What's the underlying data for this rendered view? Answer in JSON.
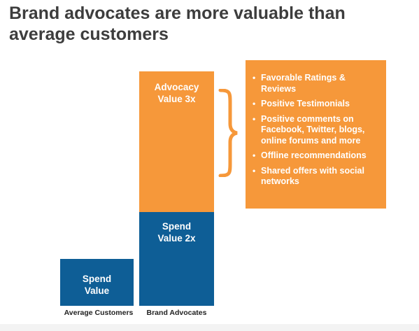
{
  "title": "Brand advocates are more valuable than average customers",
  "chart_data": {
    "type": "bar",
    "stacked": true,
    "categories": [
      "Average Customers",
      "Brand Advocates"
    ],
    "unit_note": "relative value",
    "series": [
      {
        "label": "Spend Value",
        "values": [
          1,
          2
        ],
        "color": "#0e5e96"
      },
      {
        "label": "Advocacy Value 3x",
        "values": [
          0,
          3
        ],
        "color": "#f6983a"
      }
    ],
    "segment_labels": {
      "average_spend": [
        "Spend",
        "Value"
      ],
      "advocate_spend": [
        "Spend",
        "Value 2x"
      ],
      "advocate_advocacy": [
        "Advocacy",
        "Value 3x"
      ]
    }
  },
  "callout": {
    "items": [
      "Favorable Ratings & Reviews",
      "Positive Testimonials",
      "Positive comments on Facebook, Twitter, blogs, online forums and more",
      "Offline recommendations",
      "Shared offers with social networks"
    ]
  },
  "colors": {
    "orange": "#f6983a",
    "blue": "#0e5e96",
    "title_text": "#3d3d3d",
    "brace": "#f6983a"
  },
  "icons": {
    "brace": "curly-brace-icon"
  }
}
